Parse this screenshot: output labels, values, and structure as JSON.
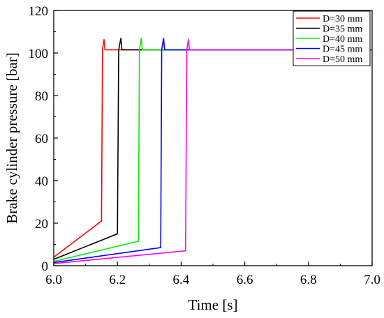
{
  "chart_data": {
    "type": "line",
    "title": "",
    "xlabel": "Time [s]",
    "ylabel": "Brake cylinder pressure [bar]",
    "xlim": [
      6.0,
      7.0
    ],
    "ylim": [
      0,
      120
    ],
    "xticks": [
      6.0,
      6.2,
      6.4,
      6.6,
      6.8,
      7.0
    ],
    "xtick_labels": [
      "6.0",
      "6.2",
      "6.4",
      "6.6",
      "6.8",
      "7.0"
    ],
    "yticks": [
      0,
      20,
      40,
      60,
      80,
      100,
      120
    ],
    "ytick_labels": [
      "0",
      "20",
      "40",
      "60",
      "80",
      "100",
      "120"
    ],
    "grid": false,
    "legend_position": "top-right",
    "series": [
      {
        "name": "D=30 mm",
        "color": "#ff0000",
        "x": [
          6.0,
          6.15,
          6.153,
          6.158,
          6.161,
          6.164,
          7.0
        ],
        "y": [
          4,
          21,
          101.5,
          106.5,
          101.5,
          101.5,
          101.5
        ]
      },
      {
        "name": "D=35 mm",
        "color": "#000000",
        "x": [
          6.0,
          6.2,
          6.204,
          6.211,
          6.214,
          6.217,
          7.0
        ],
        "y": [
          3,
          15,
          101.5,
          107,
          101.5,
          101.5,
          101.5
        ]
      },
      {
        "name": "D=40 mm",
        "color": "#00ee00",
        "x": [
          6.0,
          6.266,
          6.269,
          6.275,
          6.278,
          6.281,
          7.0
        ],
        "y": [
          2,
          11.5,
          101.5,
          107,
          101.5,
          101.5,
          101.5
        ]
      },
      {
        "name": "D=45 mm",
        "color": "#0000ff",
        "x": [
          6.0,
          6.336,
          6.339,
          6.345,
          6.348,
          6.351,
          7.0
        ],
        "y": [
          1.5,
          8.5,
          101.5,
          107,
          101.5,
          101.5,
          101.5
        ]
      },
      {
        "name": "D=50 mm",
        "color": "#ff00ff",
        "x": [
          6.0,
          6.414,
          6.418,
          6.423,
          6.426,
          6.429,
          7.0
        ],
        "y": [
          1,
          7,
          101.5,
          106.5,
          101.5,
          101.5,
          101.5
        ]
      }
    ]
  }
}
